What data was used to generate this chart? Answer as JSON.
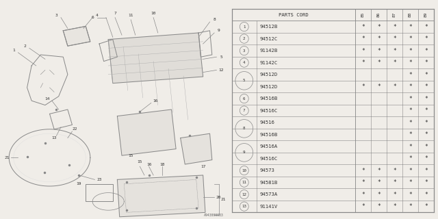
{
  "bg_color": "#f0ede8",
  "line_color": "#888888",
  "text_color": "#333333",
  "diagram_id": "A943000033",
  "table_split": 0.515,
  "col_header": "PARTS CORD",
  "year_cols": [
    "85",
    "86",
    "87",
    "88",
    "89"
  ],
  "rows": [
    {
      "num": "1",
      "code": "94512B",
      "marks": [
        true,
        true,
        true,
        true,
        true
      ],
      "show_num": true,
      "group_rows": 1
    },
    {
      "num": "2",
      "code": "94512C",
      "marks": [
        true,
        true,
        true,
        true,
        true
      ],
      "show_num": true,
      "group_rows": 1
    },
    {
      "num": "3",
      "code": "91142B",
      "marks": [
        true,
        true,
        true,
        true,
        true
      ],
      "show_num": true,
      "group_rows": 1
    },
    {
      "num": "4",
      "code": "91142C",
      "marks": [
        true,
        true,
        true,
        true,
        true
      ],
      "show_num": true,
      "group_rows": 1
    },
    {
      "num": "5",
      "code": "94512D",
      "marks": [
        false,
        false,
        false,
        true,
        true
      ],
      "show_num": true,
      "group_rows": 2
    },
    {
      "num": "5",
      "code": "94512D",
      "marks": [
        true,
        true,
        true,
        true,
        true
      ],
      "show_num": false,
      "group_rows": 2
    },
    {
      "num": "6",
      "code": "94516B",
      "marks": [
        false,
        false,
        false,
        true,
        true
      ],
      "show_num": true,
      "group_rows": 1
    },
    {
      "num": "7",
      "code": "94516C",
      "marks": [
        false,
        false,
        false,
        true,
        true
      ],
      "show_num": true,
      "group_rows": 1
    },
    {
      "num": "8",
      "code": "94516",
      "marks": [
        false,
        false,
        false,
        true,
        true
      ],
      "show_num": true,
      "group_rows": 2
    },
    {
      "num": "8",
      "code": "94516B",
      "marks": [
        false,
        false,
        false,
        true,
        true
      ],
      "show_num": false,
      "group_rows": 2
    },
    {
      "num": "9",
      "code": "94516A",
      "marks": [
        false,
        false,
        false,
        true,
        true
      ],
      "show_num": true,
      "group_rows": 2
    },
    {
      "num": "9",
      "code": "94516C",
      "marks": [
        false,
        false,
        false,
        true,
        true
      ],
      "show_num": false,
      "group_rows": 2
    },
    {
      "num": "10",
      "code": "94573",
      "marks": [
        true,
        true,
        true,
        true,
        true
      ],
      "show_num": true,
      "group_rows": 1
    },
    {
      "num": "11",
      "code": "94581B",
      "marks": [
        true,
        true,
        true,
        true,
        true
      ],
      "show_num": true,
      "group_rows": 1
    },
    {
      "num": "12",
      "code": "94573A",
      "marks": [
        true,
        true,
        true,
        true,
        true
      ],
      "show_num": true,
      "group_rows": 1
    },
    {
      "num": "13",
      "code": "91141V",
      "marks": [
        true,
        true,
        true,
        true,
        true
      ],
      "show_num": true,
      "group_rows": 1
    }
  ],
  "parts": {
    "note": "exploded diagram of sun visor and interior trim parts"
  }
}
